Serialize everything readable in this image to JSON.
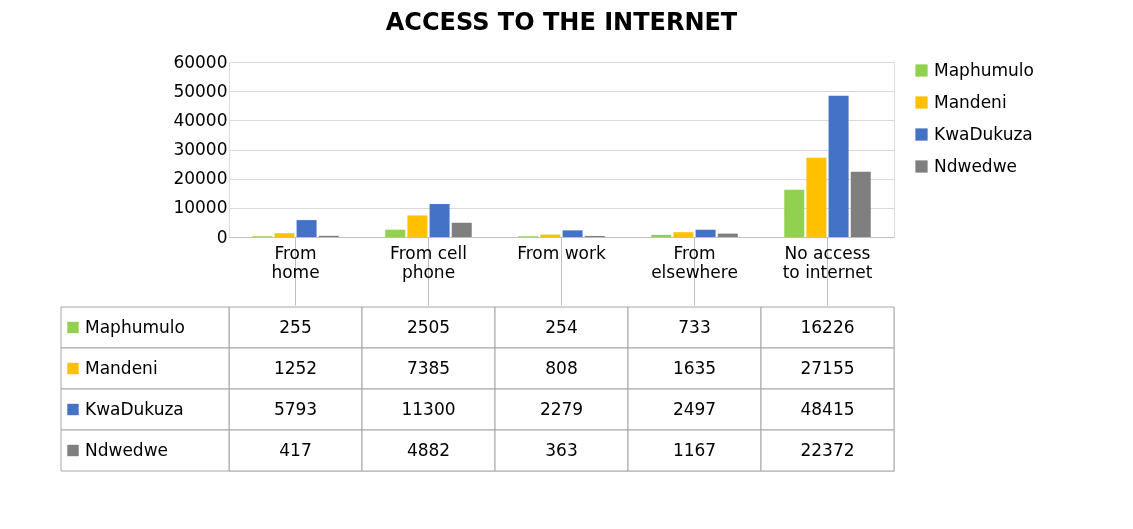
{
  "chart_data": {
    "type": "bar",
    "title": "ACCESS TO THE INTERNET",
    "categories": [
      "From\nhome",
      "From cell\nphone",
      "From work",
      "From\nelsewhere",
      "No access\nto internet"
    ],
    "series": [
      {
        "name": "Maphumulo",
        "color": "#92d050",
        "values": [
          255,
          2505,
          254,
          733,
          16226
        ]
      },
      {
        "name": "Mandeni",
        "color": "#ffc000",
        "values": [
          1252,
          7385,
          808,
          1635,
          27155
        ]
      },
      {
        "name": "KwaDukuza",
        "color": "#4472c4",
        "values": [
          5793,
          11300,
          2279,
          2497,
          48415
        ]
      },
      {
        "name": "Ndwedwe",
        "color": "#7f7f7f",
        "values": [
          417,
          4882,
          363,
          1167,
          22372
        ]
      }
    ],
    "ylim": [
      0,
      60000
    ],
    "yticks": [
      0,
      10000,
      20000,
      30000,
      40000,
      50000,
      60000
    ],
    "grid": "y",
    "legend": "right",
    "data_labels": true
  }
}
